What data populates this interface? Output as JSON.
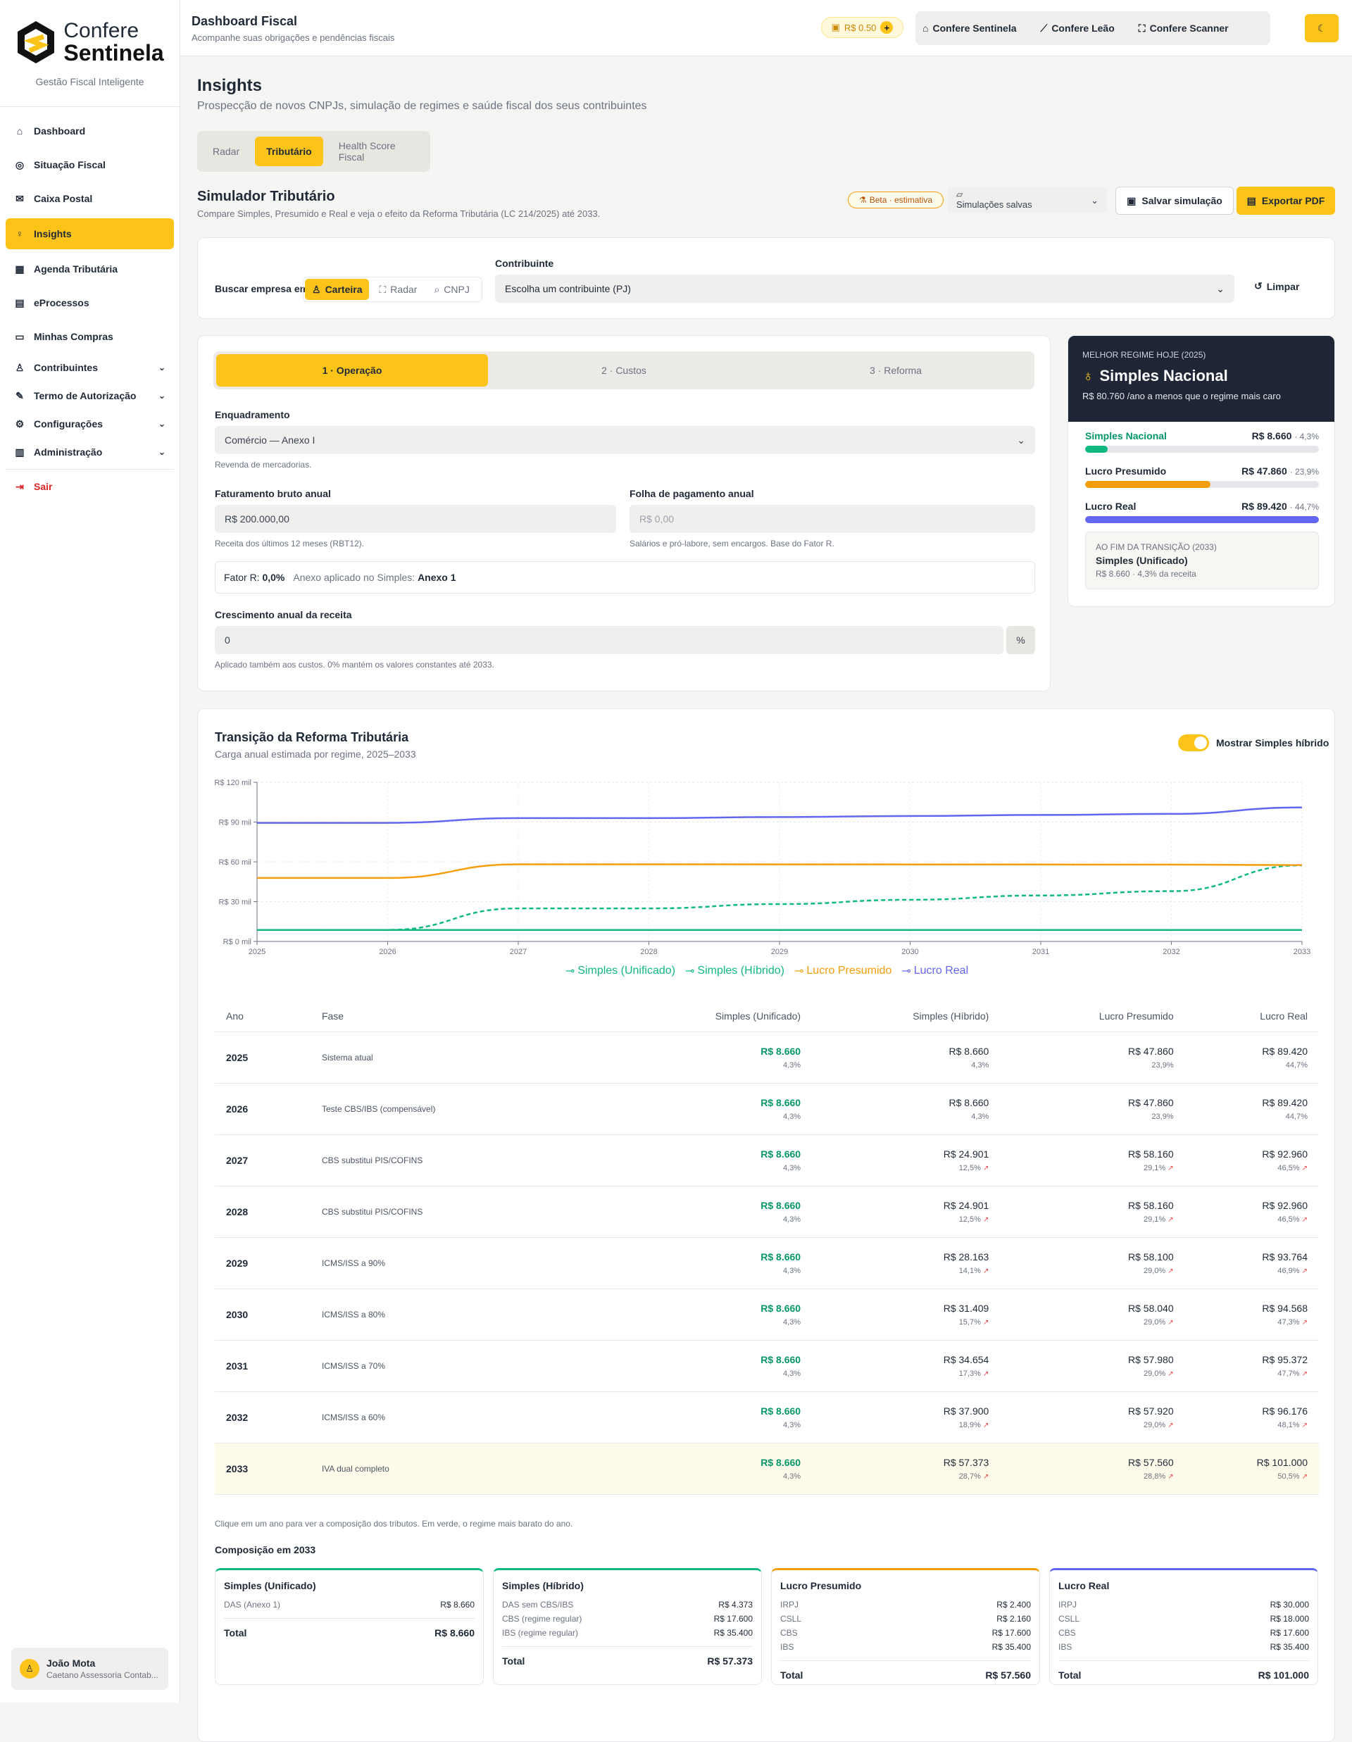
{
  "brand": {
    "name_top": "Confere",
    "name_bottom": "Sentinela",
    "tagline": "Gestão Fiscal Inteligente"
  },
  "nav": {
    "items": [
      {
        "label": "Dashboard",
        "icon": "home-icon"
      },
      {
        "label": "Situação Fiscal",
        "icon": "radar-icon"
      },
      {
        "label": "Caixa Postal",
        "icon": "mail-icon"
      },
      {
        "label": "Insights",
        "icon": "lightbulb-icon"
      },
      {
        "label": "Agenda Tributária",
        "icon": "calendar-icon"
      },
      {
        "label": "eProcessos",
        "icon": "file-icon"
      },
      {
        "label": "Minhas Compras",
        "icon": "wallet-icon"
      },
      {
        "label": "Contribuintes",
        "icon": "user-icon"
      },
      {
        "label": "Termo de Autorização",
        "icon": "sign-icon"
      },
      {
        "label": "Configurações",
        "icon": "gear-icon"
      },
      {
        "label": "Administração",
        "icon": "building-icon"
      }
    ],
    "logout": "Sair"
  },
  "user": {
    "name": "João Mota",
    "org": "Caetano Assessoria Contab..."
  },
  "topbar": {
    "title": "Dashboard Fiscal",
    "subtitle": "Acompanhe suas obrigações e pendências fiscais",
    "credit": "R$ 0.50",
    "apps": [
      "Confere Sentinela",
      "Confere Leão",
      "Confere Scanner"
    ]
  },
  "page": {
    "title": "Insights",
    "subtitle": "Prospecção de novos CNPJs, simulação de regimes e saúde fiscal dos seus contribuintes",
    "tabs": [
      "Radar",
      "Tributário",
      "Health Score Fiscal"
    ]
  },
  "sim": {
    "title": "Simulador Tributário",
    "subtitle": "Compare Simples, Presumido e Real e veja o efeito da Reforma Tributária (LC 214/2025) até 2033.",
    "beta": "Beta · estimativa",
    "saved": "Simulações salvas",
    "save_btn": "Salvar simulação",
    "pdf_btn": "Exportar PDF"
  },
  "search": {
    "label": "Buscar empresa em",
    "options": [
      "Carteira",
      "Radar",
      "CNPJ"
    ],
    "contrib_label": "Contribuinte",
    "contrib_placeholder": "Escolha um contribuinte (PJ)",
    "clear": "Limpar"
  },
  "steps": [
    "1 · Operação",
    "2 · Custos",
    "3 · Reforma"
  ],
  "form": {
    "enq_label": "Enquadramento",
    "enq_value": "Comércio — Anexo I",
    "enq_help": "Revenda de mercadorias.",
    "fat_label": "Faturamento bruto anual",
    "fat_value": "R$ 200.000,00",
    "fat_help": "Receita dos últimos 12 meses (RBT12).",
    "folha_label": "Folha de pagamento anual",
    "folha_value": "R$ 0,00",
    "folha_help": "Salários e pró-labore, sem encargos. Base do Fator R.",
    "fator_label": "Fator R:",
    "fator_value": "0,0%",
    "anexo_label": "Anexo aplicado no Simples:",
    "anexo_value": "Anexo 1",
    "cresc_label": "Crescimento anual da receita",
    "cresc_value": "0",
    "cresc_unit": "%",
    "cresc_help": "Aplicado também aos custos. 0% mantém os valores constantes até 2033."
  },
  "best": {
    "kicker": "MELHOR REGIME HOJE (2025)",
    "value": "Simples Nacional",
    "saving": "R$ 80.760 /ano a menos que o regime mais caro",
    "regimes": [
      {
        "name": "Simples Nacional",
        "value": "R$ 8.660",
        "pct": "· 4,3%",
        "frac": 0.097,
        "color": "#10b981",
        "green": true
      },
      {
        "name": "Lucro Presumido",
        "value": "R$ 47.860",
        "pct": "· 23,9%",
        "frac": 0.535,
        "color": "#f59e0b",
        "green": false
      },
      {
        "name": "Lucro Real",
        "value": "R$ 89.420",
        "pct": "· 44,7%",
        "frac": 1.0,
        "color": "#6366f1",
        "green": false
      }
    ],
    "end_kicker": "AO FIM DA TRANSIÇÃO (2033)",
    "end_value": "Simples (Unificado)",
    "end_sub": "R$ 8.660 · 4,3% da receita"
  },
  "chart_card": {
    "title": "Transição da Reforma Tributária",
    "subtitle": "Carga anual estimada por regime, 2025–2033",
    "toggle": "Mostrar Simples híbrido"
  },
  "chart_data": {
    "type": "line",
    "x": [
      2025,
      2026,
      2027,
      2028,
      2029,
      2030,
      2031,
      2032,
      2033
    ],
    "ylim": [
      0,
      120000
    ],
    "yticks": [
      "R$ 0 mil",
      "R$ 30 mil",
      "R$ 60 mil",
      "R$ 90 mil",
      "R$ 120 mil"
    ],
    "series": [
      {
        "name": "Simples (Unificado)",
        "color": "#10b981",
        "dashed": false,
        "values": [
          8660,
          8660,
          8660,
          8660,
          8660,
          8660,
          8660,
          8660,
          8660
        ]
      },
      {
        "name": "Simples (Híbrido)",
        "color": "#10b981",
        "dashed": true,
        "values": [
          8660,
          8660,
          24901,
          24901,
          28163,
          31409,
          34654,
          37900,
          57373
        ]
      },
      {
        "name": "Lucro Presumido",
        "color": "#f59e0b",
        "dashed": false,
        "values": [
          47860,
          47860,
          58160,
          58160,
          58100,
          58040,
          57980,
          57920,
          57560
        ]
      },
      {
        "name": "Lucro Real",
        "color": "#6366f1",
        "dashed": false,
        "values": [
          89420,
          89420,
          92960,
          92960,
          93764,
          94568,
          95372,
          96176,
          101000
        ]
      }
    ]
  },
  "table": {
    "headers": [
      "Ano",
      "Fase",
      "Simples (Unificado)",
      "Simples (Híbrido)",
      "Lucro Presumido",
      "Lucro Real"
    ],
    "rows": [
      {
        "ano": "2025",
        "fase": "Sistema atual",
        "c": [
          [
            "R$ 8.660",
            "4,3%",
            false
          ],
          [
            "R$ 8.660",
            "4,3%",
            false
          ],
          [
            "R$ 47.860",
            "23,9%",
            false
          ],
          [
            "R$ 89.420",
            "44,7%",
            false
          ]
        ]
      },
      {
        "ano": "2026",
        "fase": "Teste CBS/IBS (compensável)",
        "c": [
          [
            "R$ 8.660",
            "4,3%",
            false
          ],
          [
            "R$ 8.660",
            "4,3%",
            false
          ],
          [
            "R$ 47.860",
            "23,9%",
            false
          ],
          [
            "R$ 89.420",
            "44,7%",
            false
          ]
        ]
      },
      {
        "ano": "2027",
        "fase": "CBS substitui PIS/COFINS",
        "c": [
          [
            "R$ 8.660",
            "4,3%",
            false
          ],
          [
            "R$ 24.901",
            "12,5%",
            true
          ],
          [
            "R$ 58.160",
            "29,1%",
            true
          ],
          [
            "R$ 92.960",
            "46,5%",
            true
          ]
        ]
      },
      {
        "ano": "2028",
        "fase": "CBS substitui PIS/COFINS",
        "c": [
          [
            "R$ 8.660",
            "4,3%",
            false
          ],
          [
            "R$ 24.901",
            "12,5%",
            true
          ],
          [
            "R$ 58.160",
            "29,1%",
            true
          ],
          [
            "R$ 92.960",
            "46,5%",
            true
          ]
        ]
      },
      {
        "ano": "2029",
        "fase": "ICMS/ISS a 90%",
        "c": [
          [
            "R$ 8.660",
            "4,3%",
            false
          ],
          [
            "R$ 28.163",
            "14,1%",
            true
          ],
          [
            "R$ 58.100",
            "29,0%",
            true
          ],
          [
            "R$ 93.764",
            "46,9%",
            true
          ]
        ]
      },
      {
        "ano": "2030",
        "fase": "ICMS/ISS a 80%",
        "c": [
          [
            "R$ 8.660",
            "4,3%",
            false
          ],
          [
            "R$ 31.409",
            "15,7%",
            true
          ],
          [
            "R$ 58.040",
            "29,0%",
            true
          ],
          [
            "R$ 94.568",
            "47,3%",
            true
          ]
        ]
      },
      {
        "ano": "2031",
        "fase": "ICMS/ISS a 70%",
        "c": [
          [
            "R$ 8.660",
            "4,3%",
            false
          ],
          [
            "R$ 34.654",
            "17,3%",
            true
          ],
          [
            "R$ 57.980",
            "29,0%",
            true
          ],
          [
            "R$ 95.372",
            "47,7%",
            true
          ]
        ]
      },
      {
        "ano": "2032",
        "fase": "ICMS/ISS a 60%",
        "c": [
          [
            "R$ 8.660",
            "4,3%",
            false
          ],
          [
            "R$ 37.900",
            "18,9%",
            true
          ],
          [
            "R$ 57.920",
            "29,0%",
            true
          ],
          [
            "R$ 96.176",
            "48,1%",
            true
          ]
        ]
      },
      {
        "ano": "2033",
        "fase": "IVA dual completo",
        "c": [
          [
            "R$ 8.660",
            "4,3%",
            false
          ],
          [
            "R$ 57.373",
            "28,7%",
            true
          ],
          [
            "R$ 57.560",
            "28,8%",
            true
          ],
          [
            "R$ 101.000",
            "50,5%",
            true
          ]
        ]
      }
    ],
    "footnote": "Clique em um ano para ver a composição dos tributos. Em verde, o regime mais barato do ano."
  },
  "composition": {
    "title": "Composição em 2033",
    "cards": [
      {
        "name": "Simples (Unificado)",
        "color": "#10b981",
        "items": [
          [
            "DAS (Anexo 1)",
            "R$ 8.660"
          ]
        ],
        "total": "R$ 8.660"
      },
      {
        "name": "Simples (Híbrido)",
        "color": "#10b981",
        "items": [
          [
            "DAS sem CBS/IBS",
            "R$ 4.373"
          ],
          [
            "CBS (regime regular)",
            "R$ 17.600"
          ],
          [
            "IBS (regime regular)",
            "R$ 35.400"
          ]
        ],
        "total": "R$ 57.373"
      },
      {
        "name": "Lucro Presumido",
        "color": "#f59e0b",
        "items": [
          [
            "IRPJ",
            "R$ 2.400"
          ],
          [
            "CSLL",
            "R$ 2.160"
          ],
          [
            "CBS",
            "R$ 17.600"
          ],
          [
            "IBS",
            "R$ 35.400"
          ]
        ],
        "total": "R$ 57.560"
      },
      {
        "name": "Lucro Real",
        "color": "#6366f1",
        "items": [
          [
            "IRPJ",
            "R$ 30.000"
          ],
          [
            "CSLL",
            "R$ 18.000"
          ],
          [
            "CBS",
            "R$ 17.600"
          ],
          [
            "IBS",
            "R$ 35.400"
          ]
        ],
        "total": "R$ 101.000"
      }
    ],
    "total_label": "Total"
  }
}
